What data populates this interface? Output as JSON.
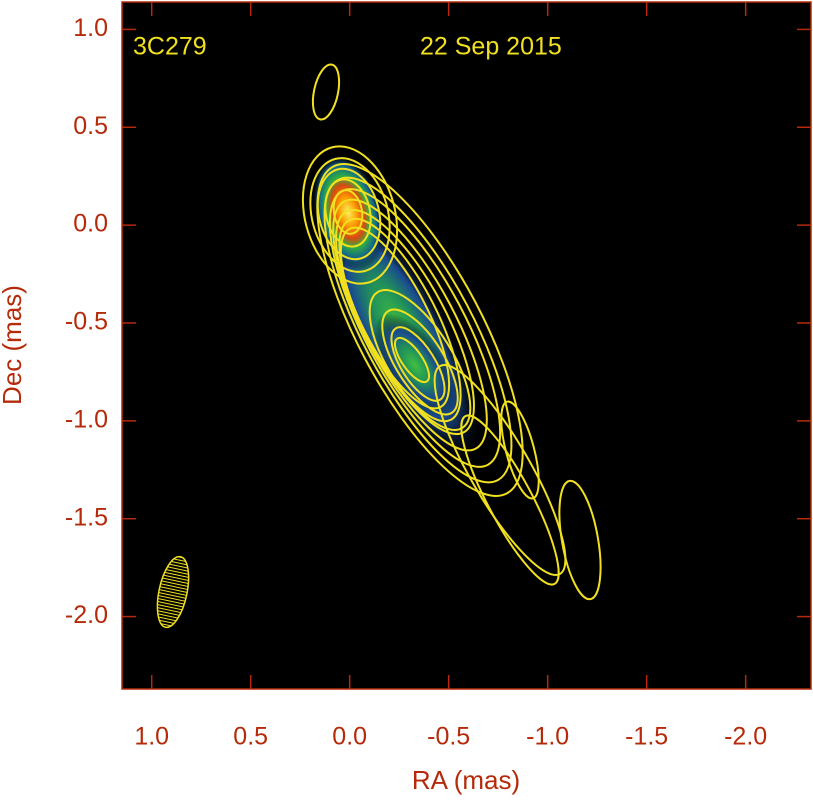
{
  "chart_data": {
    "type": "contour",
    "annotations": [
      "3C279",
      "22 Sep 2015"
    ],
    "xlabel": "RA (mas)",
    "ylabel": "Dec (mas)",
    "xlim": [
      1.15,
      -2.33
    ],
    "ylim": [
      -2.37,
      1.14
    ],
    "xticks": [
      {
        "value": 1,
        "label": "1.0"
      },
      0.5,
      {
        "value": 0,
        "label": "0.0"
      },
      -0.5,
      {
        "value": -1,
        "label": "-1.0"
      },
      -1.5,
      {
        "value": -2,
        "label": "-2.0"
      }
    ],
    "yticks": [
      {
        "value": 1,
        "label": "1.0"
      },
      0.5,
      {
        "value": 0,
        "label": "0.0"
      },
      -0.5,
      {
        "value": -1,
        "label": "-1.0"
      },
      -1.5,
      {
        "value": -2,
        "label": "-2.0"
      }
    ],
    "axis_color": "#b52a0a",
    "contour_color": "#f0e020"
  }
}
